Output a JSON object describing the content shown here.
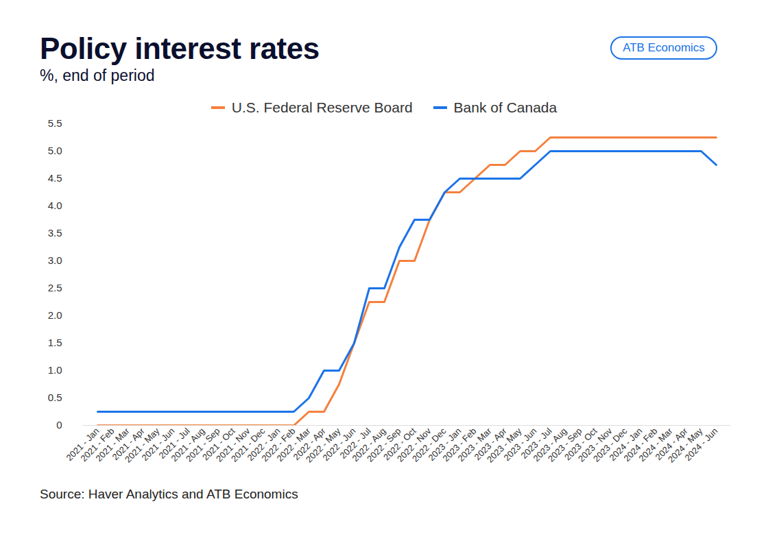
{
  "chart_data": {
    "type": "line",
    "title": "Policy interest rates",
    "subtitle": "%, end of period",
    "brand": "ATB Economics",
    "source": "Source: Haver Analytics and ATB Economics",
    "legend": "top",
    "grid": false,
    "categories": [
      "2021 - Jan",
      "2021 - Feb",
      "2021 - Mar",
      "2021 - Apr",
      "2021 - May",
      "2021 - Jun",
      "2021 - Jul",
      "2021 - Aug",
      "2021 - Sep",
      "2021 - Oct",
      "2021 - Nov",
      "2021 - Dec",
      "2022 - Jan",
      "2022 - Feb",
      "2022 - Mar",
      "2022 - Apr",
      "2022 - May",
      "2022 - Jun",
      "2022 - Jul",
      "2022 - Aug",
      "2022 - Sep",
      "2022 - Oct",
      "2022 - Nov",
      "2022 - Dec",
      "2023 - Jan",
      "2023 - Feb",
      "2023 - Mar",
      "2023 - Apr",
      "2023 - May",
      "2023 - Jun",
      "2023 - Jul",
      "2023 - Aug",
      "2023 - Sep",
      "2023 - Oct",
      "2023 - Nov",
      "2023 - Dec",
      "2024 - Jan",
      "2024 - Feb",
      "2024 - Mar",
      "2024 - Apr",
      "2024 - May",
      "2024 - Jun"
    ],
    "series": [
      {
        "name": "U.S. Federal Reserve Board",
        "color": "#f5803e",
        "values": [
          0,
          0,
          0,
          0,
          0,
          0,
          0,
          0,
          0,
          0,
          0,
          0,
          0,
          0,
          0.25,
          0.25,
          0.75,
          1.5,
          2.25,
          2.25,
          3.0,
          3.0,
          3.75,
          4.25,
          4.25,
          4.5,
          4.75,
          4.75,
          5.0,
          5.0,
          5.25,
          5.25,
          5.25,
          5.25,
          5.25,
          5.25,
          5.25,
          5.25,
          5.25,
          5.25,
          5.25,
          5.25
        ]
      },
      {
        "name": "Bank of Canada",
        "color": "#1a73e8",
        "values": [
          0.25,
          0.25,
          0.25,
          0.25,
          0.25,
          0.25,
          0.25,
          0.25,
          0.25,
          0.25,
          0.25,
          0.25,
          0.25,
          0.25,
          0.5,
          1.0,
          1.0,
          1.5,
          2.5,
          2.5,
          3.25,
          3.75,
          3.75,
          4.25,
          4.5,
          4.5,
          4.5,
          4.5,
          4.5,
          4.75,
          5.0,
          5.0,
          5.0,
          5.0,
          5.0,
          5.0,
          5.0,
          5.0,
          5.0,
          5.0,
          5.0,
          4.75
        ]
      }
    ],
    "ylim": [
      0,
      5.5
    ],
    "yticks": [
      0,
      0.5,
      {
        "value": 1,
        "label": "1.0"
      },
      1.5,
      {
        "value": 2,
        "label": "2.0"
      },
      2.5,
      {
        "value": 3,
        "label": "3.0"
      },
      3.5,
      {
        "value": 4,
        "label": "4.0"
      },
      4.5,
      {
        "value": 5,
        "label": "5.0"
      },
      5.5
    ]
  }
}
